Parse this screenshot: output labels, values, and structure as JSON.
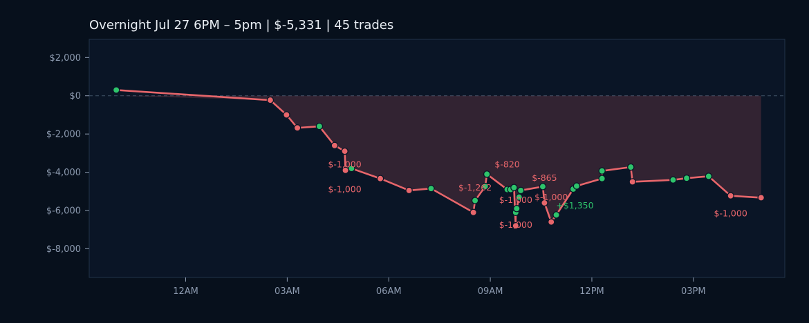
{
  "chart_data": {
    "type": "line",
    "title": "Overnight  Jul 27 6PM – 5pm  |  $-5,331  |  45 trades",
    "xlabel": "",
    "ylabel": "",
    "x_unit": "hours since midnight (negative = prior evening)",
    "xlim": [
      -2.85,
      17.7
    ],
    "ylim": [
      -9500,
      2950
    ],
    "x_ticks": [
      {
        "value": 0,
        "label": "12AM"
      },
      {
        "value": 3,
        "label": "03AM"
      },
      {
        "value": 6,
        "label": "06AM"
      },
      {
        "value": 9,
        "label": "09AM"
      },
      {
        "value": 12,
        "label": "12PM"
      },
      {
        "value": 15,
        "label": "03PM"
      }
    ],
    "y_ticks": [
      {
        "value": 2000,
        "label": "$2,000"
      },
      {
        "value": 0,
        "label": "$0"
      },
      {
        "value": -2000,
        "label": "$-2,000"
      },
      {
        "value": -4000,
        "label": "$-4,000"
      },
      {
        "value": -6000,
        "label": "$-6,000"
      },
      {
        "value": -8000,
        "label": "$-8,000"
      }
    ],
    "zero_line": true,
    "grid": false,
    "colors": {
      "line": "#e8666b",
      "loss_point": "#e8666b",
      "win_point": "#2ec46b",
      "fill": "#e8666b",
      "background": "#07101c",
      "plot_background": "#0a1526"
    },
    "series": [
      {
        "points": [
          {
            "x": -2.05,
            "y": 300,
            "r": "win"
          },
          {
            "x": 2.5,
            "y": -230,
            "r": "loss"
          },
          {
            "x": 2.98,
            "y": -1000,
            "r": "loss"
          },
          {
            "x": 3.3,
            "y": -1680,
            "r": "loss"
          },
          {
            "x": 3.95,
            "y": -1600,
            "r": "win"
          },
          {
            "x": 4.4,
            "y": -2600,
            "r": "loss"
          },
          {
            "x": 4.7,
            "y": -2900,
            "r": "loss"
          },
          {
            "x": 4.72,
            "y": -3900,
            "r": "loss"
          },
          {
            "x": 4.9,
            "y": -3800,
            "r": "win"
          },
          {
            "x": 5.75,
            "y": -4330,
            "r": "loss"
          },
          {
            "x": 6.6,
            "y": -4950,
            "r": "loss"
          },
          {
            "x": 7.25,
            "y": -4850,
            "r": "win"
          },
          {
            "x": 8.5,
            "y": -6100,
            "r": "loss"
          },
          {
            "x": 8.55,
            "y": -5480,
            "r": "win"
          },
          {
            "x": 8.85,
            "y": -4740,
            "r": "win"
          },
          {
            "x": 8.9,
            "y": -4100,
            "r": "win"
          },
          {
            "x": 9.5,
            "y": -4900,
            "r": "win"
          },
          {
            "x": 9.6,
            "y": -4900,
            "r": "win"
          },
          {
            "x": 9.7,
            "y": -4800,
            "r": "win"
          },
          {
            "x": 9.75,
            "y": -6800,
            "r": "loss"
          },
          {
            "x": 9.75,
            "y": -6100,
            "r": "win"
          },
          {
            "x": 9.78,
            "y": -5900,
            "r": "win"
          },
          {
            "x": 9.85,
            "y": -5300,
            "r": "win"
          },
          {
            "x": 9.9,
            "y": -4950,
            "r": "win"
          },
          {
            "x": 10.55,
            "y": -4750,
            "r": "win"
          },
          {
            "x": 10.6,
            "y": -5600,
            "r": "loss"
          },
          {
            "x": 10.8,
            "y": -6600,
            "r": "loss"
          },
          {
            "x": 10.95,
            "y": -6230,
            "r": "win"
          },
          {
            "x": 11.45,
            "y": -4880,
            "r": "win"
          },
          {
            "x": 11.55,
            "y": -4720,
            "r": "win"
          },
          {
            "x": 12.3,
            "y": -4330,
            "r": "win"
          },
          {
            "x": 12.3,
            "y": -3930,
            "r": "win"
          },
          {
            "x": 13.15,
            "y": -3730,
            "r": "win"
          },
          {
            "x": 13.2,
            "y": -4500,
            "r": "loss"
          },
          {
            "x": 14.4,
            "y": -4400,
            "r": "win"
          },
          {
            "x": 14.8,
            "y": -4310,
            "r": "win"
          },
          {
            "x": 15.45,
            "y": -4210,
            "r": "win"
          },
          {
            "x": 16.1,
            "y": -5230,
            "r": "loss"
          },
          {
            "x": 17.0,
            "y": -5331,
            "r": "loss"
          }
        ]
      }
    ],
    "annotations": [
      {
        "text": "$-1,000",
        "x": 4.7,
        "y": -3750,
        "color": "loss"
      },
      {
        "text": "$-1,000",
        "x": 4.7,
        "y": -5050,
        "color": "loss"
      },
      {
        "text": "$-1,262",
        "x": 8.55,
        "y": -4950,
        "color": "loss"
      },
      {
        "text": "$-820",
        "x": 9.5,
        "y": -3750,
        "color": "loss"
      },
      {
        "text": "$-1,000",
        "x": 9.75,
        "y": -5600,
        "color": "loss"
      },
      {
        "text": "$-1,000",
        "x": 9.75,
        "y": -6900,
        "color": "loss"
      },
      {
        "text": "$-865",
        "x": 10.6,
        "y": -4450,
        "color": "loss"
      },
      {
        "text": "$-1,000",
        "x": 10.8,
        "y": -5450,
        "color": "loss"
      },
      {
        "text": "+$1,350",
        "x": 11.5,
        "y": -5900,
        "color": "win"
      },
      {
        "text": "$-1,000",
        "x": 16.1,
        "y": -6300,
        "color": "loss"
      }
    ]
  }
}
